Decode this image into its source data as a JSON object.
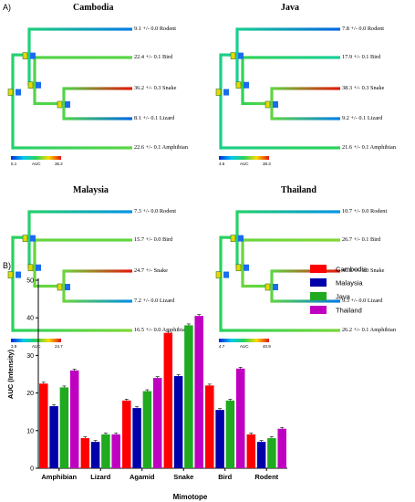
{
  "panel_a_label": "A)",
  "panel_b_label": "B)",
  "scale_axis_label": "AUC",
  "trees": [
    {
      "title": "Cambodia",
      "scale_min": "5.1",
      "scale_max": "36.2",
      "labels": {
        "rodent": "9.1 +/- 0.0 Rodent",
        "bird": "22.4 +/- 0.1 Bird",
        "snake": "36.2 +/- 0.3 Snake",
        "lizard": "8.1 +/- 0.1 Lizard",
        "amphibian": "22.6 +/- 0.1 Amphibian"
      },
      "values": {
        "rodent": 9.1,
        "bird": 22.4,
        "snake": 36.2,
        "lizard": 8.1,
        "amphibian": 22.6
      }
    },
    {
      "title": "Java",
      "scale_min": "4.6",
      "scale_max": "38.3",
      "labels": {
        "rodent": "7.8 +/- 0.0 Rodent",
        "bird": "17.9 +/- 0.1 Bird",
        "snake": "38.3 +/- 0.3 Snake",
        "lizard": "9.2 +/- 0.1 Lizard",
        "amphibian": "21.6 +/- 0.1 Amphibian"
      },
      "values": {
        "rodent": 7.8,
        "bird": 17.9,
        "snake": 38.3,
        "lizard": 9.2,
        "amphibian": 21.6
      }
    },
    {
      "title": "Malaysia",
      "scale_min": "3.9",
      "scale_max": "24.7",
      "labels": {
        "rodent": "7.3 +/- 0.0 Rodent",
        "bird": "15.7 +/- 0.0 Bird",
        "snake": "24.7 +/- Snake",
        "lizard": "7.2 +/- 0.0 Lizard",
        "amphibian": "16.5 +/- 0.0 Amphibian"
      },
      "values": {
        "rodent": 7.3,
        "bird": 15.7,
        "snake": 24.7,
        "lizard": 7.2,
        "amphibian": 16.5
      }
    },
    {
      "title": "Thailand",
      "scale_min": "4.7",
      "scale_max": "40.9",
      "labels": {
        "rodent": "10.7 +/- 0.0 Rodent",
        "bird": "26.7 +/- 0.1 Bird",
        "snake": "40.9 +/- 0.3 Snake",
        "lizard": "9.3 +/- 0.0 Lizard",
        "amphibian": "26.2 +/- 0.1 Amphibian"
      },
      "values": {
        "rodent": 10.7,
        "bird": 26.7,
        "snake": 40.9,
        "lizard": 9.3,
        "amphibian": 26.2
      }
    }
  ],
  "chart_data": {
    "type": "bar",
    "categories": [
      "Amphibian",
      "Lizard",
      "Agamid",
      "Snake",
      "Bird",
      "Rodent"
    ],
    "series": [
      {
        "name": "Cambodia",
        "color": "#ff0000",
        "values": [
          22.5,
          8.0,
          18.0,
          36.0,
          22.0,
          9.0
        ]
      },
      {
        "name": "Malaysia",
        "color": "#0000aa",
        "values": [
          16.5,
          7.0,
          16.0,
          24.5,
          15.5,
          7.0
        ]
      },
      {
        "name": "Java",
        "color": "#1faa1f",
        "values": [
          21.5,
          9.0,
          20.5,
          38.0,
          18.0,
          8.0
        ]
      },
      {
        "name": "Thailand",
        "color": "#c000c0",
        "values": [
          26.0,
          9.0,
          24.0,
          40.5,
          26.5,
          10.5
        ]
      }
    ],
    "title": "",
    "xlabel": "Mimotope",
    "ylabel": "AUC (Intensity)",
    "ylim": [
      0,
      50
    ],
    "yticks": [
      0,
      10,
      20,
      30,
      40,
      50
    ],
    "legend": "top-right"
  }
}
